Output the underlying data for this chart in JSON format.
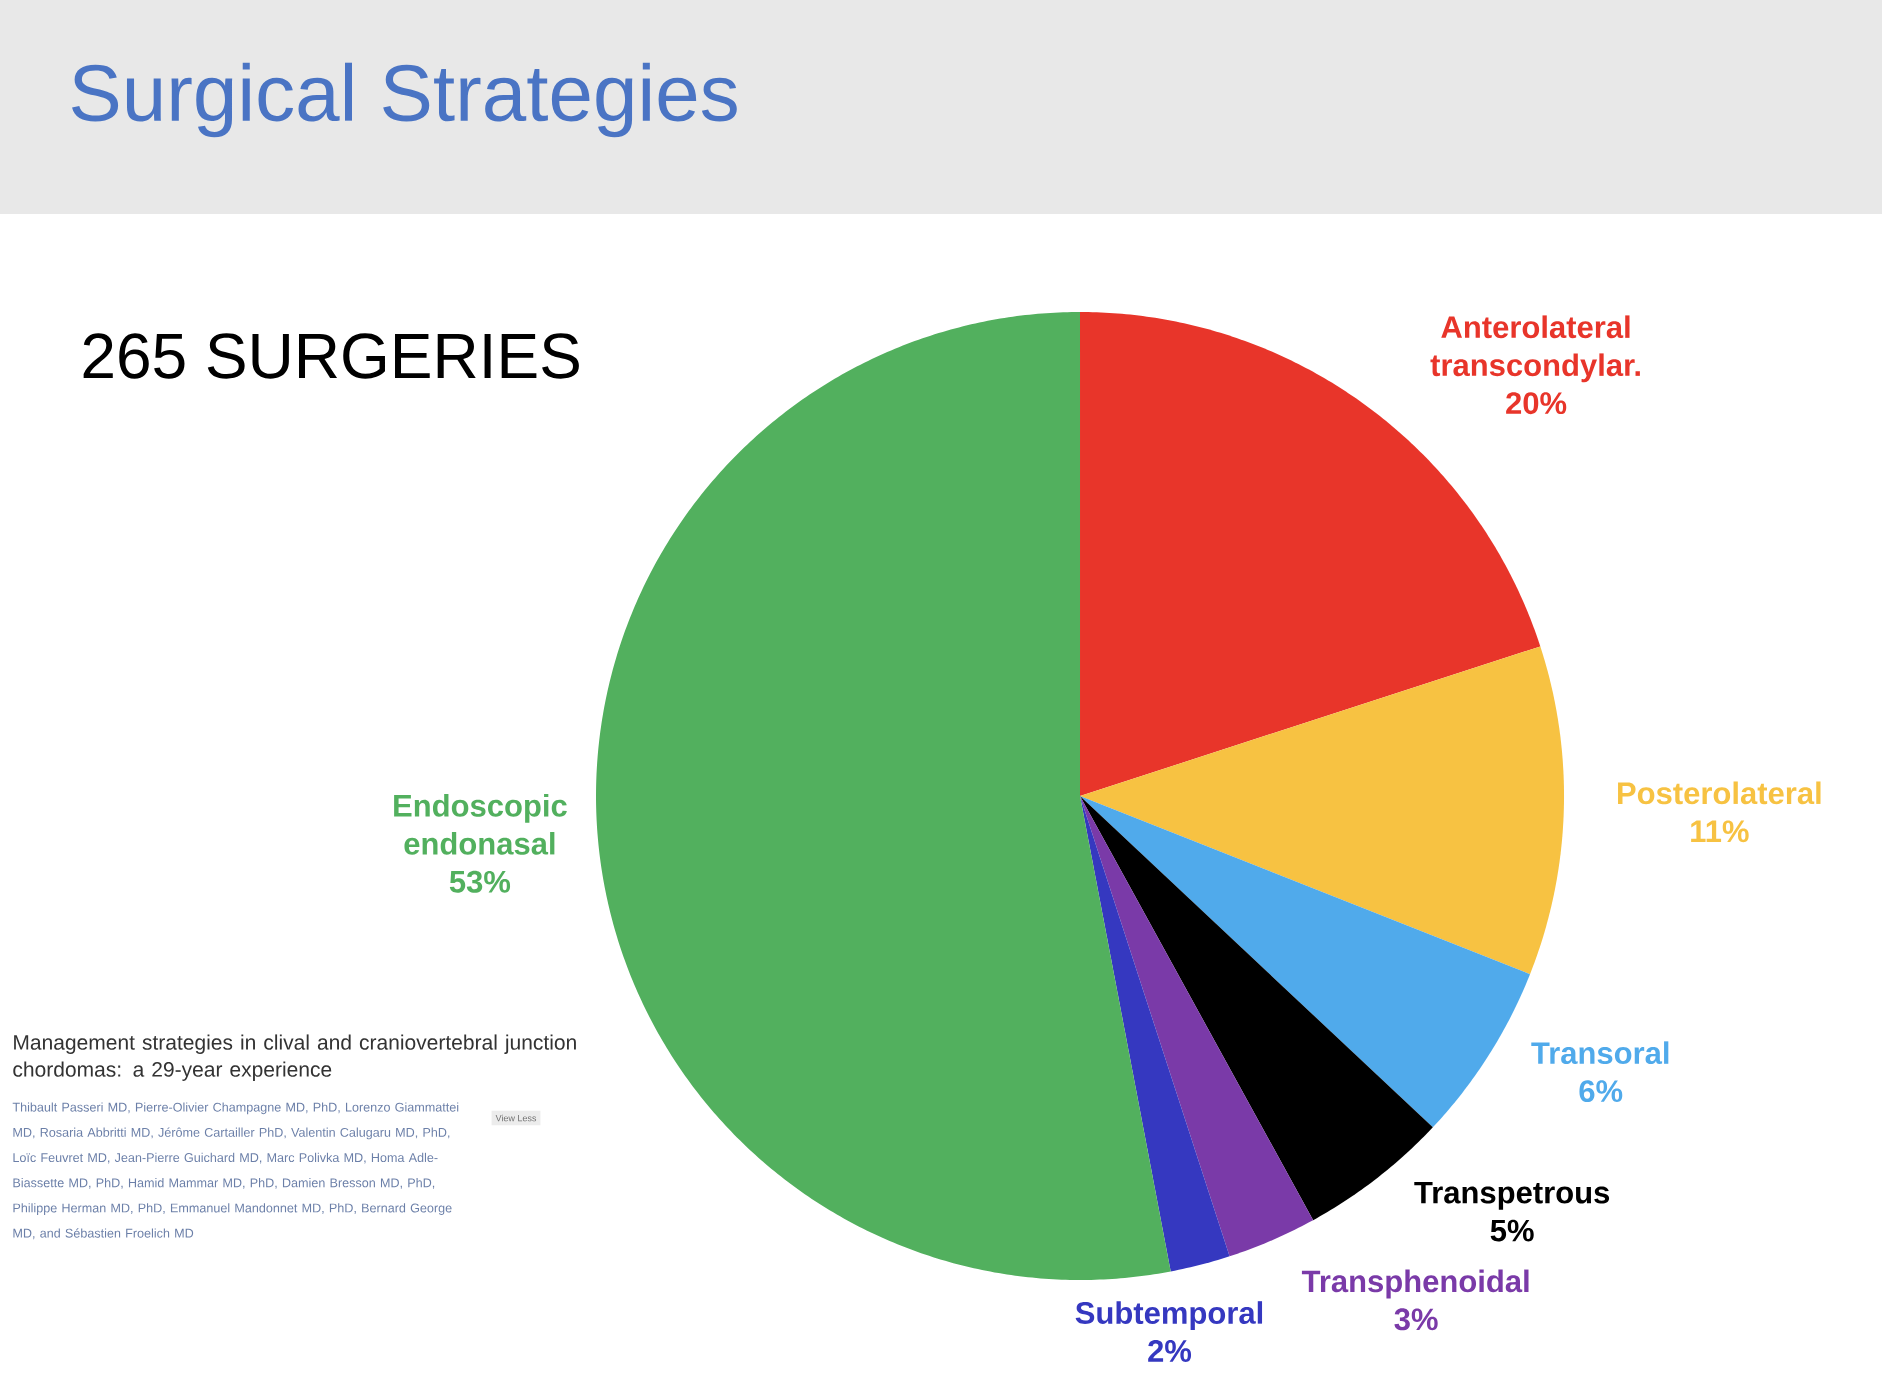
{
  "chart_data": {
    "type": "pie",
    "title": "Surgical Strategies",
    "subtitle": "265 SURGERIES",
    "categories": [
      "Anterolateral transcondylar.",
      "Posterolateral",
      "Transoral",
      "Transpetrous",
      "Transphenoidal",
      "Subtemporal",
      "Endoscopic endonasal"
    ],
    "values": [
      20,
      11,
      6,
      5,
      3,
      2,
      53
    ],
    "value_labels": [
      "20%",
      "11%",
      "6%",
      "5%",
      "3%",
      "2%",
      "53%"
    ],
    "colors": [
      "#e8352a",
      "#f7c242",
      "#50aaeb",
      "#000000",
      "#7a3aa8",
      "#3538c0",
      "#52b05e"
    ],
    "annotations": [
      "Management strategies in clival and craniovertebral junction chordomas: a 29-year experience",
      "Thibault Passeri MD, Pierre-Olivier Champagne MD, PhD, Lorenzo Giammattei MD, Rosaria Abbritti MD, Jérôme Cartailler PhD, Valentin Calugaru MD, PhD, Loïc Feuvret MD, Jean-Pierre Guichard MD, Marc Polivka MD, Homa Adle-Biassette MD, PhD, Hamid Mammar MD, PhD, Damien Bresson MD, PhD, Philippe Herman MD, PhD, Emmanuel Mandonnet MD, PhD, Bernard George MD, and Sébastien Froelich MD",
      "View Less"
    ]
  }
}
